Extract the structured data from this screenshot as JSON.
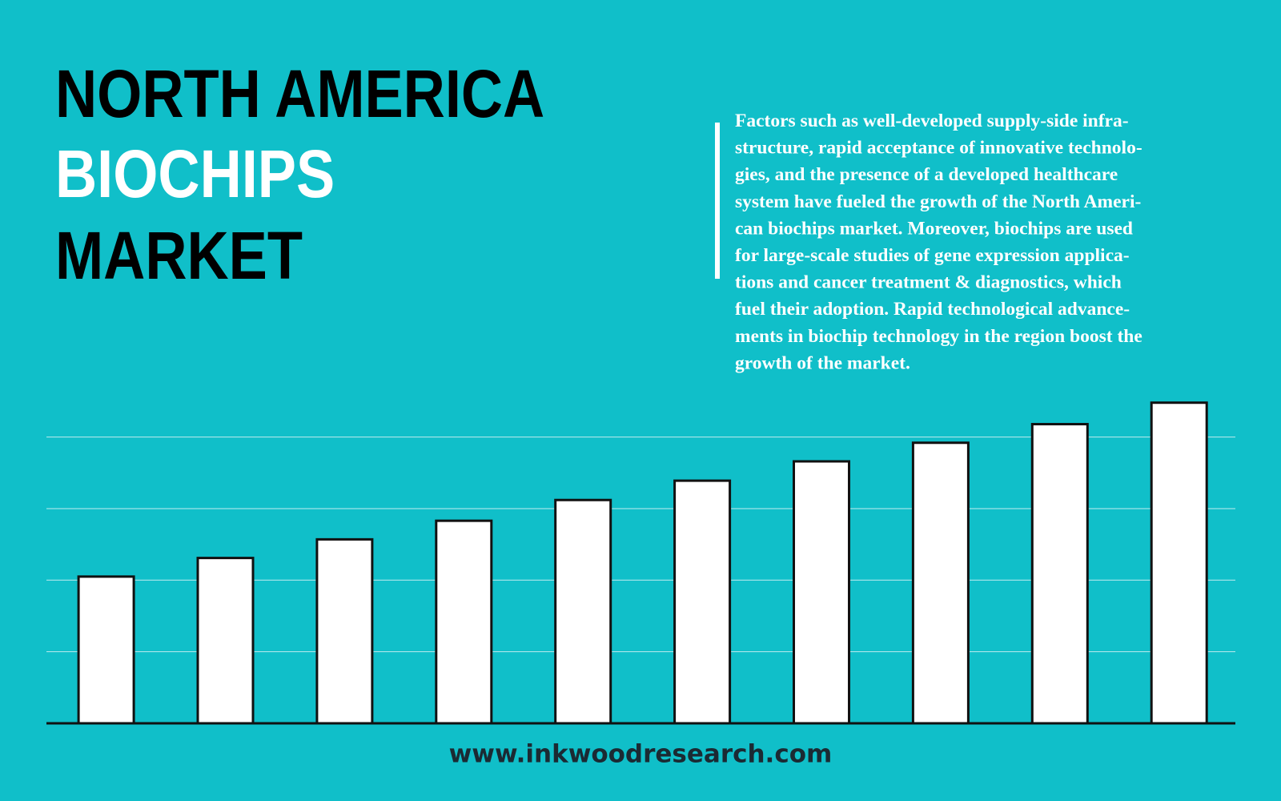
{
  "title": [
    "NORTH AMERICA",
    "BIOCHIPS",
    "MARKET"
  ],
  "description": [
    "Factors such as well-developed supply-side infra-",
    "structure, rapid acceptance of innovative technolo-",
    "gies, and the presence of a developed healthcare",
    "system have fueled the growth of the North Ameri-",
    "can biochips market. Moreover, biochips are used",
    "for large-scale studies of gene expression applica-",
    "tions and cancer treatment & diagnostics, which",
    "fuel their adoption. Rapid technological advance-",
    "ments in biochip technology in the region boost the",
    "growth of the market."
  ],
  "footer": "www.inkwoodresearch.com",
  "chart_data": {
    "type": "bar",
    "categories": [
      null,
      null,
      null,
      null,
      null,
      null,
      null,
      null,
      null,
      null
    ],
    "values": [
      2.05,
      2.31,
      2.57,
      2.83,
      3.12,
      3.39,
      3.66,
      3.92,
      4.18,
      4.48
    ],
    "color": "#ffffff",
    "ylim": [
      0,
      4.6
    ],
    "yticks": [
      1,
      2,
      3,
      4
    ],
    "grid": true
  }
}
